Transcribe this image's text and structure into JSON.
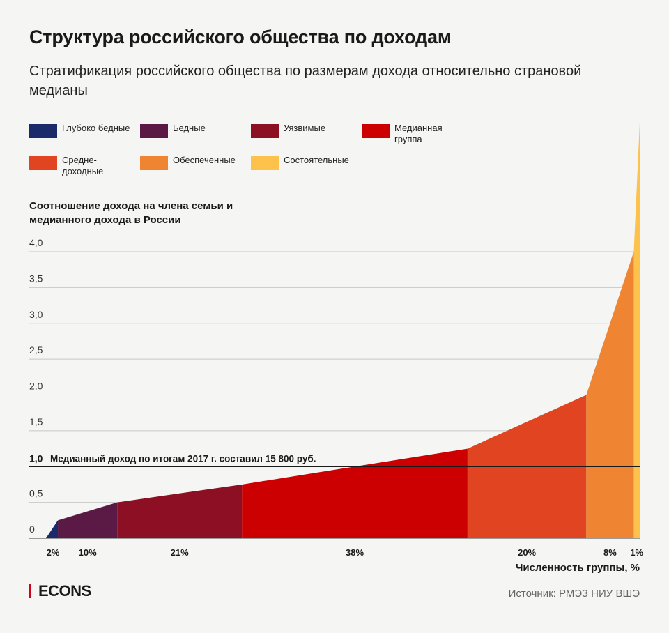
{
  "title": "Структура российского общества по доходам",
  "subtitle": "Стратификация российского общества по размерам дохода относительно страновой медианы",
  "logo": "ECONS",
  "source": "Источник: РМЭЗ НИУ ВШЭ",
  "chart_data": {
    "type": "area",
    "ylabel": "Соотношение дохода на члена семьи и медианного дохода в России",
    "xlabel": "Численность группы, %",
    "ylim": [
      0,
      4.0
    ],
    "y_ticks": [
      "0",
      "0,5",
      "1,0",
      "1,5",
      "2,0",
      "2,5",
      "3,0",
      "3,5",
      "4,0"
    ],
    "grid": true,
    "median_line": {
      "value": 1.0,
      "label": "Медианный доход по итогам 2017 г. составил 15 800 руб."
    },
    "legend_position": "top",
    "series": [
      {
        "name": "Глубоко бедные",
        "share": 2,
        "share_label": "2%",
        "y_start": 0,
        "y_end": 0.25,
        "color": "#1b2a6b"
      },
      {
        "name": "Бедные",
        "share": 10,
        "share_label": "10%",
        "y_start": 0.25,
        "y_end": 0.5,
        "color": "#5a1a45"
      },
      {
        "name": "Уязвимые",
        "share": 21,
        "share_label": "21%",
        "y_start": 0.5,
        "y_end": 0.75,
        "color": "#8c0f24"
      },
      {
        "name": "Медианная группа",
        "share": 38,
        "share_label": "38%",
        "y_start": 0.75,
        "y_end": 1.25,
        "color": "#cc0000"
      },
      {
        "name": "Средне-доходные",
        "share": 20,
        "share_label": "20%",
        "y_start": 1.25,
        "y_end": 2.0,
        "color": "#e04420"
      },
      {
        "name": "Обеспеченные",
        "share": 8,
        "share_label": "8%",
        "y_start": 2.0,
        "y_end": 4.0,
        "color": "#ef8533"
      },
      {
        "name": "Состоятельные",
        "share": 1,
        "share_label": "1%",
        "y_start": 4.0,
        "y_end": 5.8,
        "color": "#fcc24c"
      }
    ]
  }
}
